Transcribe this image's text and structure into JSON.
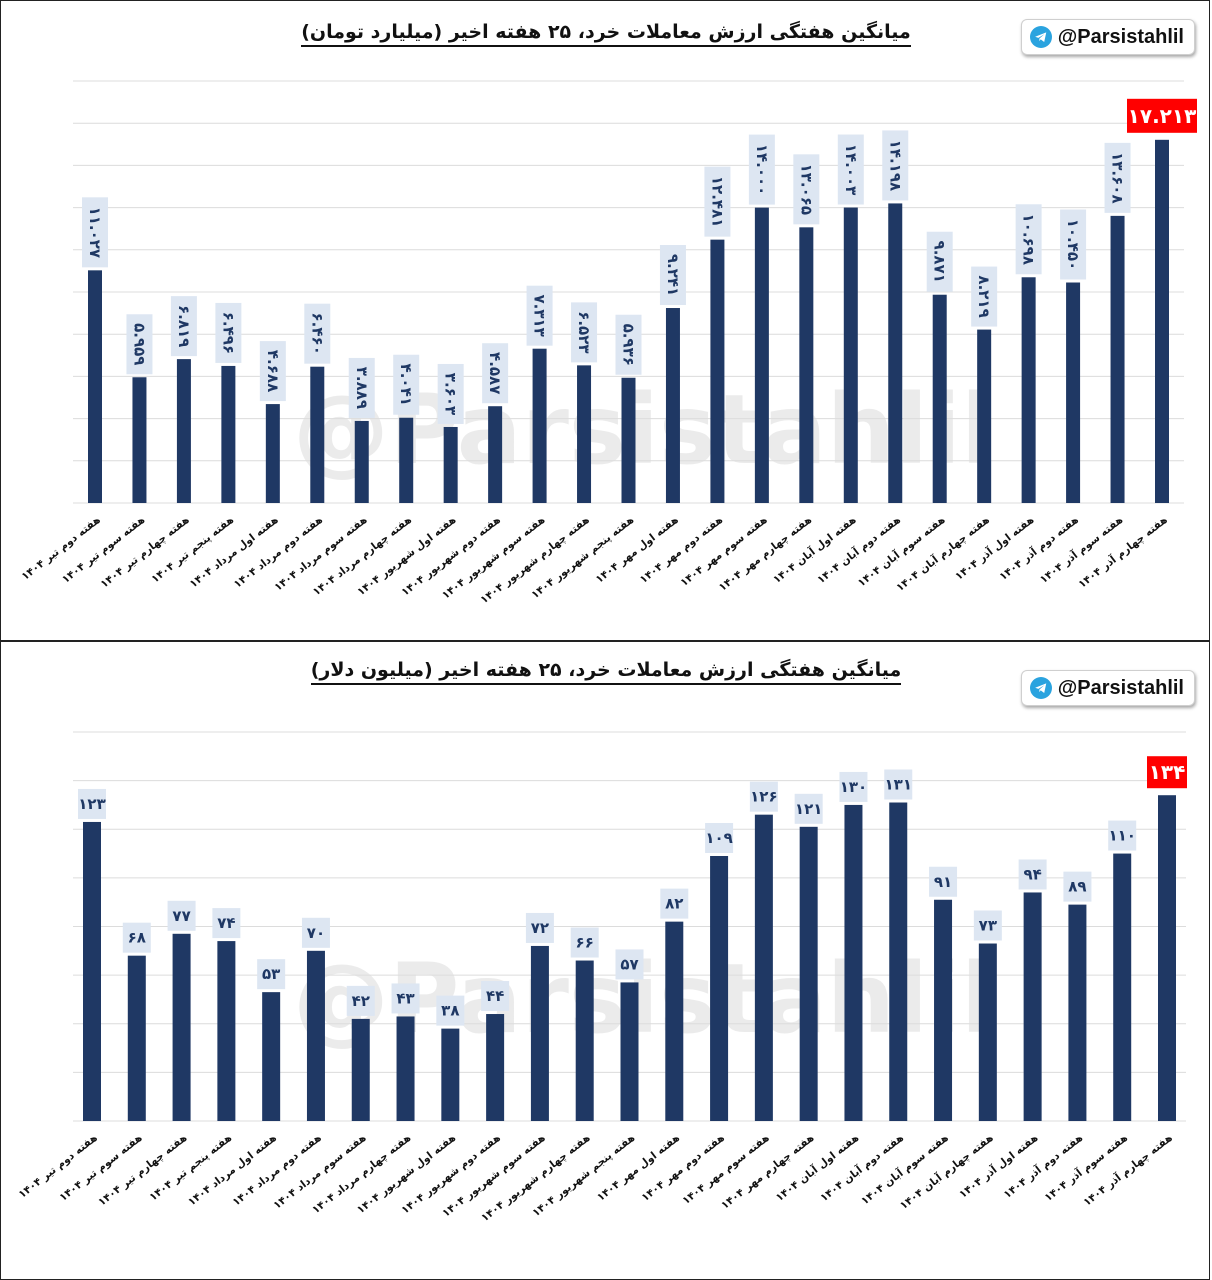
{
  "brand_handle": "@Parsistahlil",
  "watermark": "@Parsistahlil",
  "colors": {
    "bar": "#1f3864",
    "label_box": "#dde6f2",
    "highlight": "#ff0000",
    "telegram": "#2aa3df"
  },
  "icons": {
    "brand": "telegram-icon"
  },
  "chart_data": [
    {
      "type": "bar",
      "title": "میانگین هفتگی ارزش معاملات خرد، ۲۵ هفته اخیر (میلیارد تومان)",
      "categories": [
        "هفته دوم تیر ۱۴۰۴",
        "هفته سوم تیر ۱۴۰۴",
        "هفته چهارم تیر ۱۴۰۴",
        "هفته پنجم تیر ۱۴۰۴",
        "هفته اول مرداد ۱۴۰۴",
        "هفته دوم مرداد ۱۴۰۴",
        "هفته سوم مرداد ۱۴۰۴",
        "هفته چهارم مرداد ۱۴۰۴",
        "هفته اول شهریور ۱۴۰۴",
        "هفته دوم شهریور ۱۴۰۴",
        "هفته سوم شهریور ۱۴۰۴",
        "هفته چهارم شهریور ۱۴۰۴",
        "هفته پنجم شهریور ۱۴۰۴",
        "هفته اول مهر ۱۴۰۴",
        "هفته دوم مهر ۱۴۰۴",
        "هفته سوم مهر ۱۴۰۴",
        "هفته چهارم مهر ۱۴۰۴",
        "هفته اول آبان ۱۴۰۴",
        "هفته دوم آبان ۱۴۰۴",
        "هفته سوم آبان ۱۴۰۴",
        "هفته چهارم آبان ۱۴۰۴",
        "هفته اول آذر ۱۴۰۴",
        "هفته دوم آذر ۱۴۰۴",
        "هفته سوم آذر ۱۴۰۴",
        "هفته چهارم آذر ۱۴۰۴"
      ],
      "values": [
        11.027,
        5.959,
        6.819,
        6.496,
        4.688,
        6.46,
        3.889,
        4.041,
        3.603,
        4.587,
        7.313,
        6.523,
        5.936,
        9.241,
        12.481,
        14.0,
        13.065,
        14.003,
        14.198,
        9.871,
        8.219,
        10.698,
        10.45,
        13.608,
        17.213
      ],
      "value_labels": [
        "۱۱.۰۲۷",
        "۵.۹۵۹",
        "۶.۸۱۹",
        "۶.۴۹۶",
        "۴.۶۸۸",
        "۶.۴۶۰",
        "۳.۸۸۹",
        "۴.۰۴۱",
        "۳.۶۰۳",
        "۴.۵۸۷",
        "۷.۳۱۳",
        "۶.۵۲۳",
        "۵.۹۳۶",
        "۹.۲۴۱",
        "۱۲.۴۸۱",
        "۱۴.۰۰۰",
        "۱۳.۰۶۵",
        "۱۴.۰۰۳",
        "۱۴.۱۹۸",
        "۹.۸۷۱",
        "۸.۲۱۹",
        "۱۰.۶۹۸",
        "۱۰.۴۵۰",
        "۱۳.۶۰۸",
        "۱۷.۲۱۳"
      ],
      "highlight_index": 24,
      "ylim": [
        0,
        20
      ],
      "grid": true,
      "xlabel": "",
      "ylabel": ""
    },
    {
      "type": "bar",
      "title": "میانگین هفتگی ارزش معاملات خرد، ۲۵ هفته اخیر (میلیون دلار)",
      "categories": [
        "هفته دوم تیر ۱۴۰۴",
        "هفته سوم تیر ۱۴۰۴",
        "هفته چهارم تیر ۱۴۰۴",
        "هفته پنجم تیر ۱۴۰۴",
        "هفته اول مرداد ۱۴۰۴",
        "هفته دوم مرداد ۱۴۰۴",
        "هفته سوم مرداد ۱۴۰۴",
        "هفته چهارم مرداد ۱۴۰۴",
        "هفته اول شهریور ۱۴۰۴",
        "هفته دوم شهریور ۱۴۰۴",
        "هفته سوم شهریور ۱۴۰۴",
        "هفته چهارم شهریور ۱۴۰۴",
        "هفته پنجم شهریور ۱۴۰۴",
        "هفته اول مهر ۱۴۰۴",
        "هفته دوم مهر ۱۴۰۴",
        "هفته سوم مهر ۱۴۰۴",
        "هفته چهارم مهر ۱۴۰۴",
        "هفته اول آبان ۱۴۰۴",
        "هفته دوم آبان ۱۴۰۴",
        "هفته سوم آبان ۱۴۰۴",
        "هفته چهارم آبان ۱۴۰۴",
        "هفته اول آذر ۱۴۰۴",
        "هفته دوم آذر ۱۴۰۴",
        "هفته سوم آذر ۱۴۰۴",
        "هفته چهارم آذر ۱۴۰۴"
      ],
      "values": [
        123,
        68,
        77,
        74,
        53,
        70,
        42,
        43,
        38,
        44,
        72,
        66,
        57,
        82,
        109,
        126,
        121,
        130,
        131,
        91,
        73,
        94,
        89,
        110,
        134
      ],
      "value_labels": [
        "۱۲۳",
        "۶۸",
        "۷۷",
        "۷۴",
        "۵۳",
        "۷۰",
        "۴۲",
        "۴۳",
        "۳۸",
        "۴۴",
        "۷۲",
        "۶۶",
        "۵۷",
        "۸۲",
        "۱۰۹",
        "۱۲۶",
        "۱۲۱",
        "۱۳۰",
        "۱۳۱",
        "۹۱",
        "۷۳",
        "۹۴",
        "۸۹",
        "۱۱۰",
        "۱۳۴"
      ],
      "highlight_index": 24,
      "ylim": [
        0,
        160
      ],
      "grid": true,
      "xlabel": "",
      "ylabel": ""
    }
  ]
}
